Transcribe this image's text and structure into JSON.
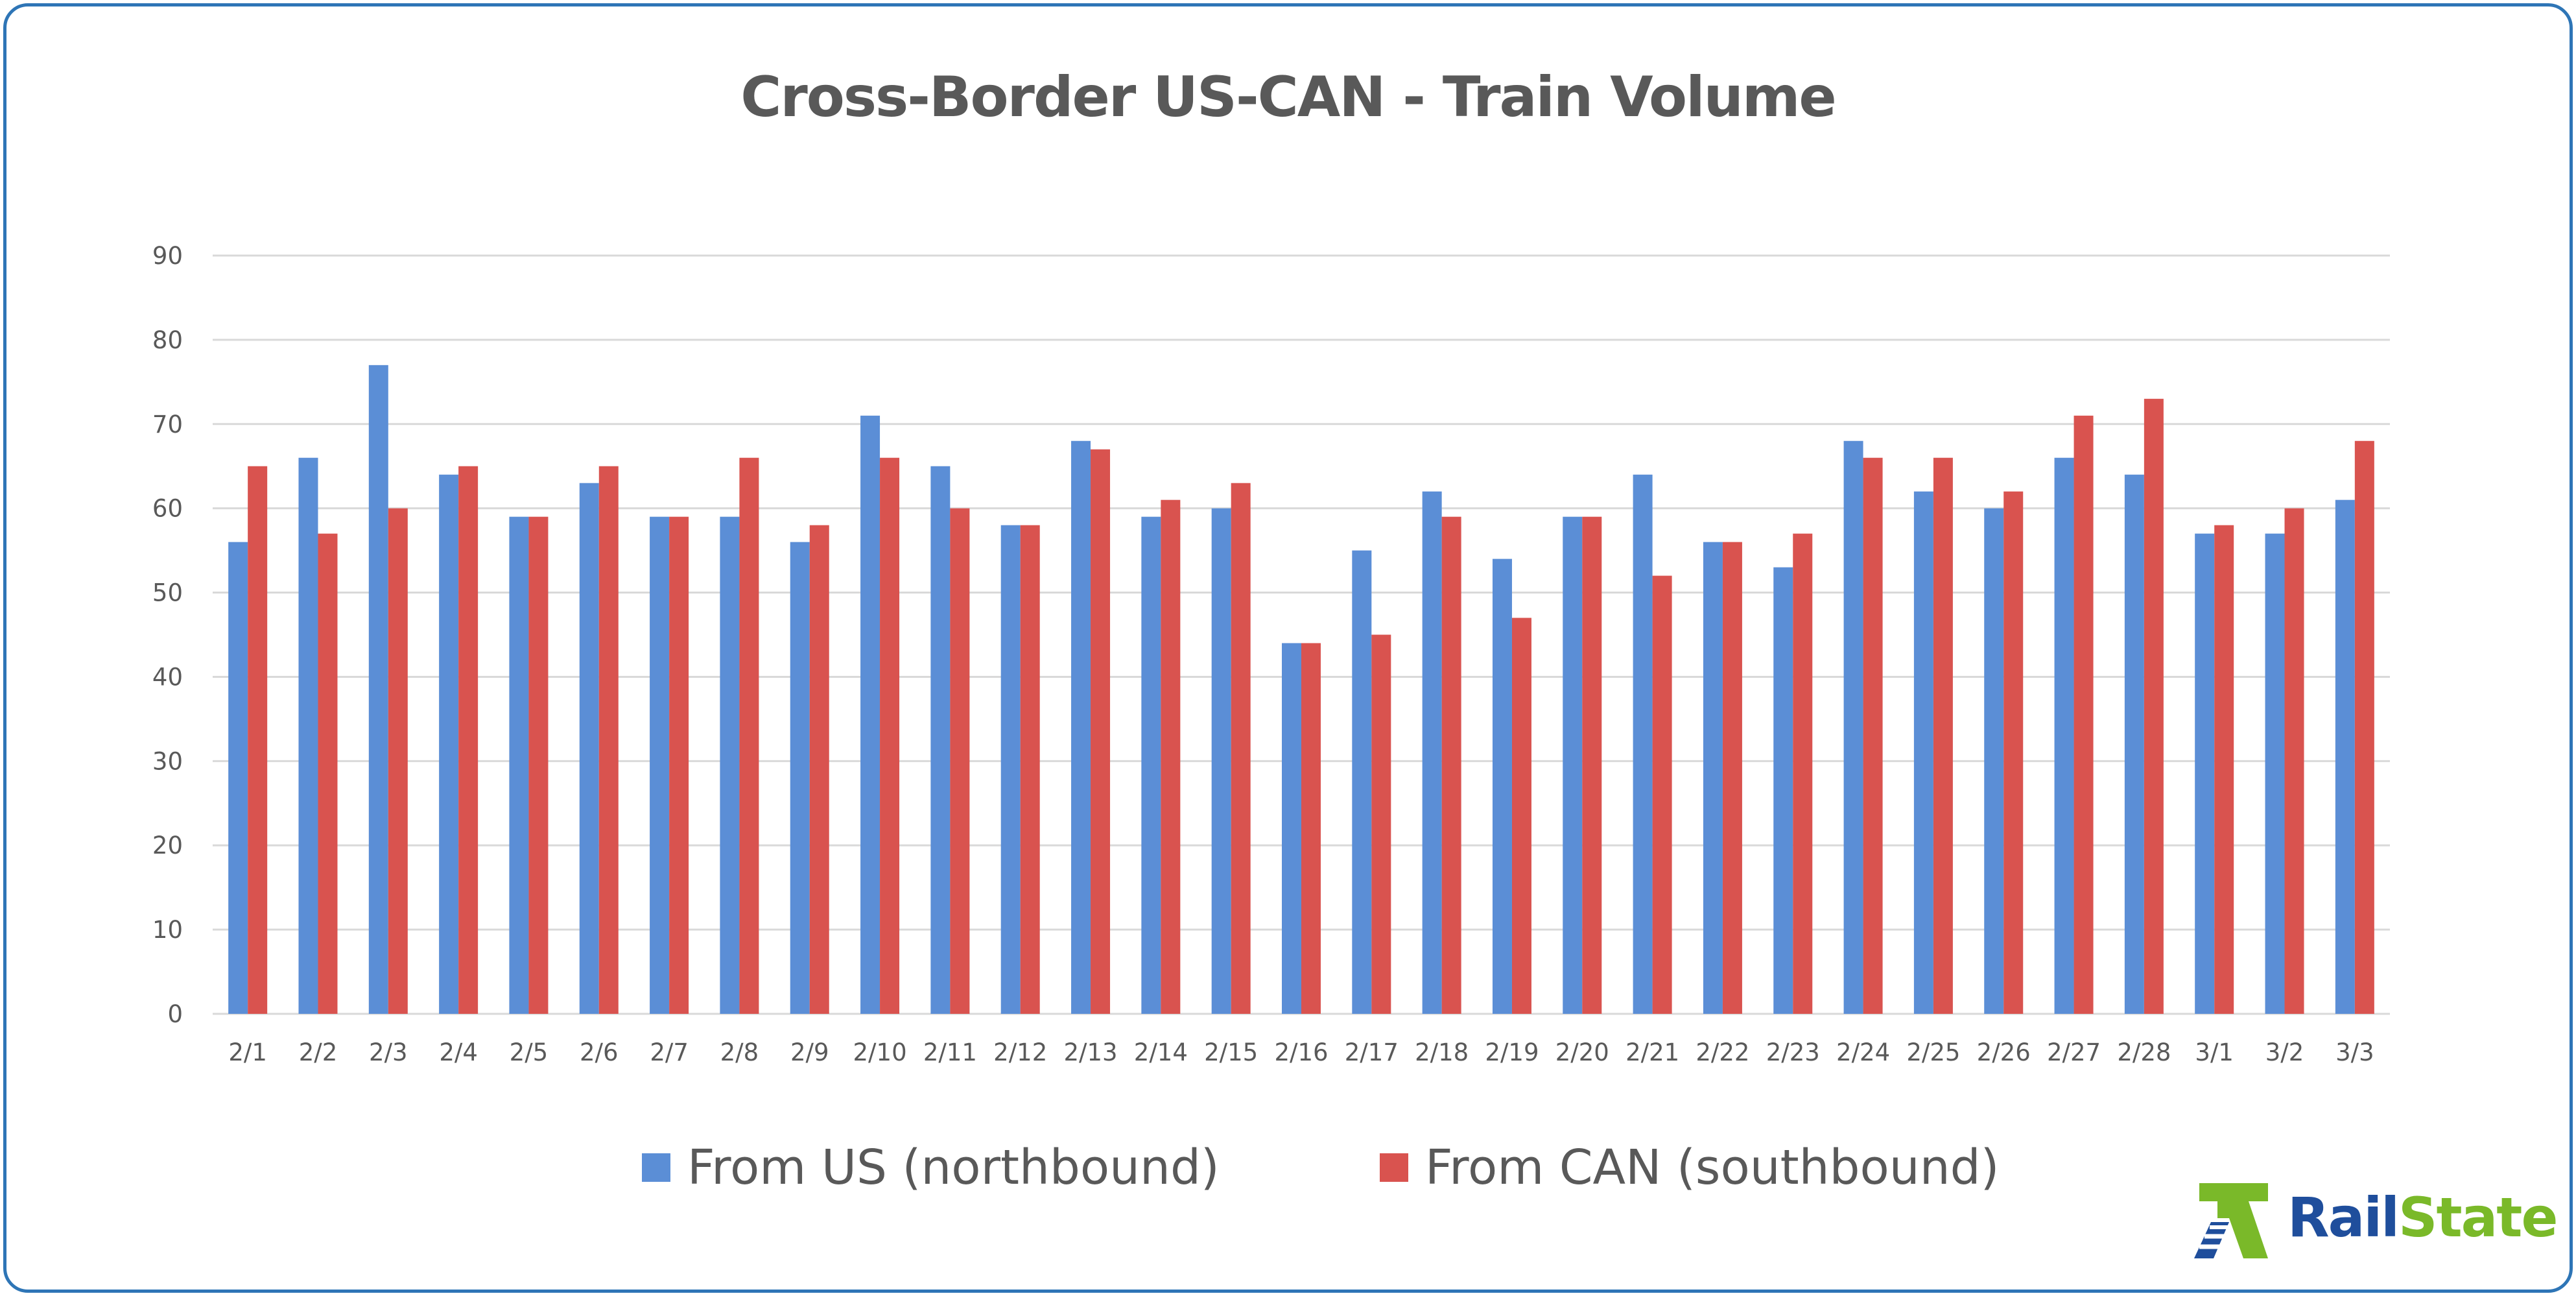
{
  "chart_data": {
    "type": "bar",
    "title": "Cross-Border US-CAN - Train Volume",
    "xlabel": "",
    "ylabel": "",
    "ylim": [
      0,
      90
    ],
    "yticks": [
      "0",
      "10",
      "20",
      "30",
      "40",
      "50",
      "60",
      "70",
      "80",
      "90"
    ],
    "grid": true,
    "legend_position": "bottom",
    "categories": [
      "2/1",
      "2/2",
      "2/3",
      "2/4",
      "2/5",
      "2/6",
      "2/7",
      "2/8",
      "2/9",
      "2/10",
      "2/11",
      "2/12",
      "2/13",
      "2/14",
      "2/15",
      "2/16",
      "2/17",
      "2/18",
      "2/19",
      "2/20",
      "2/21",
      "2/22",
      "2/23",
      "2/24",
      "2/25",
      "2/26",
      "2/27",
      "2/28",
      "3/1",
      "3/2",
      "3/3"
    ],
    "series": [
      {
        "name": "From US (northbound)",
        "color": "#5b8ed6",
        "values": [
          56,
          66,
          77,
          64,
          59,
          63,
          59,
          59,
          56,
          71,
          65,
          58,
          68,
          59,
          60,
          44,
          55,
          62,
          54,
          59,
          64,
          56,
          53,
          68,
          62,
          60,
          66,
          64,
          57,
          57,
          61
        ]
      },
      {
        "name": "From CAN (southbound)",
        "color": "#d9534f",
        "values": [
          65,
          57,
          60,
          65,
          59,
          65,
          59,
          66,
          58,
          66,
          60,
          58,
          67,
          61,
          63,
          44,
          45,
          59,
          47,
          59,
          52,
          56,
          57,
          66,
          66,
          62,
          71,
          73,
          58,
          60,
          68
        ]
      }
    ]
  },
  "logo": {
    "text_part1": "Rail",
    "text_part2": "State",
    "color_part1": "#1f4e9c",
    "color_part2": "#7ab929"
  },
  "colors": {
    "frame": "#2e75b6",
    "text": "#595959",
    "gridline": "#d9d9d9"
  }
}
